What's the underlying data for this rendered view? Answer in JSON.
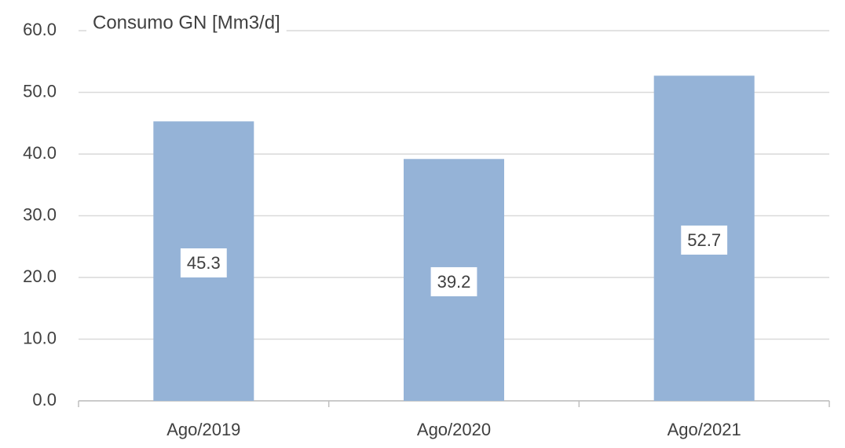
{
  "chart_data": {
    "type": "bar",
    "title": "Consumo GN [Mm3/d]",
    "categories": [
      "Ago/2019",
      "Ago/2020",
      "Ago/2021"
    ],
    "values": [
      45.3,
      39.2,
      52.7
    ],
    "color": "#95b3d7",
    "ylim": [
      0,
      60
    ],
    "yticks": [
      {
        "value": 0,
        "label": "0.0"
      },
      {
        "value": 10,
        "label": "10.0"
      },
      {
        "value": 20,
        "label": "20.0"
      },
      {
        "value": 30,
        "label": "30.0"
      },
      {
        "value": 40,
        "label": "40.0"
      },
      {
        "value": 50,
        "label": "50.0"
      },
      {
        "value": 60,
        "label": "60.0"
      }
    ],
    "grid": true
  }
}
